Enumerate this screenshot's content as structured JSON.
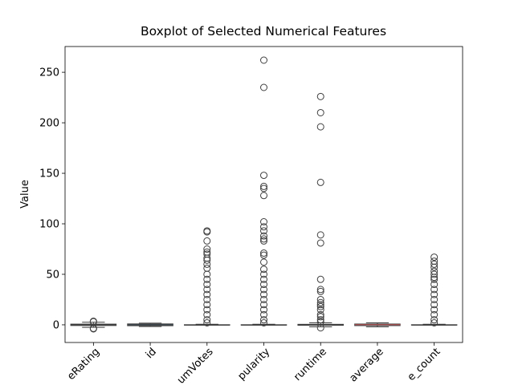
{
  "chart_data": {
    "type": "boxplot",
    "title": "Boxplot of Selected Numerical Features",
    "y_label": "Value",
    "categories": [
      "eRating",
      "id",
      "umVotes",
      "pularity",
      "runtime",
      "average",
      "e_count"
    ],
    "color": "#3274a1",
    "median_color": "#c0504d",
    "ylim": [
      -17.5,
      275.5
    ],
    "yticks": [
      0,
      50,
      100,
      150,
      200,
      250
    ],
    "boxes": [
      {
        "min": -2.5,
        "q1": -0.7,
        "median": 0,
        "q3": 0.7,
        "max": 2.5,
        "outliers": [
          -4,
          -3.5,
          3,
          3.5
        ]
      },
      {
        "min": -1.7,
        "q1": -0.9,
        "median": 0,
        "q3": 0.9,
        "max": 1.7,
        "outliers": []
      },
      {
        "min": -0.3,
        "q1": -0.3,
        "median": -0.2,
        "q3": 0.1,
        "max": 0.6,
        "outliers": [
          93,
          92,
          83,
          75,
          72,
          70,
          66,
          64,
          60,
          56,
          50,
          45,
          40,
          35,
          30,
          25,
          20,
          15,
          10,
          5,
          2
        ]
      },
      {
        "min": -0.3,
        "q1": -0.3,
        "median": -0.2,
        "q3": 0.1,
        "max": 0.6,
        "outliers": [
          262,
          235,
          148,
          137,
          135,
          128,
          102,
          97,
          93,
          88,
          85,
          83,
          71,
          69,
          62,
          55,
          50,
          45,
          40,
          35,
          30,
          25,
          20,
          15,
          10,
          5,
          2
        ]
      },
      {
        "min": -2,
        "q1": -0.5,
        "median": 0,
        "q3": 0.5,
        "max": 2,
        "outliers": [
          226,
          210,
          196,
          141,
          89,
          81,
          45,
          35,
          33,
          25,
          22,
          20,
          18,
          15,
          10,
          8,
          5,
          3,
          -3
        ]
      },
      {
        "min": -2,
        "q1": -0.8,
        "median": 0.1,
        "q3": 0.8,
        "max": 2,
        "outliers": []
      },
      {
        "min": -0.3,
        "q1": -0.3,
        "median": -0.2,
        "q3": 0.1,
        "max": 0.6,
        "outliers": [
          67,
          63,
          60,
          57,
          53,
          50,
          47,
          45,
          40,
          35,
          30,
          25,
          20,
          15,
          10,
          5,
          2
        ]
      }
    ]
  }
}
